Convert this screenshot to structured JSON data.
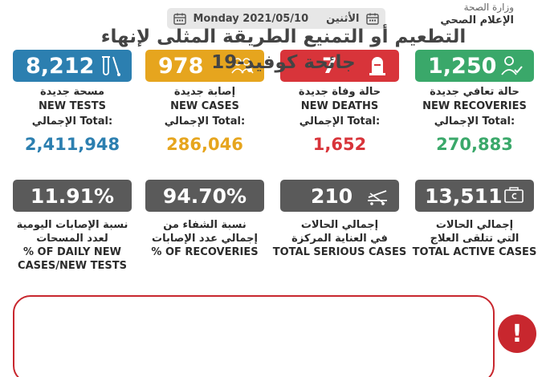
{
  "header": {
    "date_en": "Monday 2021/05/10",
    "day_ar": "الأثنين"
  },
  "ministry": {
    "line1": "وزارة الصحة",
    "line2": "الإعلام الصحي"
  },
  "colors": {
    "blue": "#2c7fb0",
    "yellow": "#e6a51e",
    "red": "#d8343a",
    "green": "#3aa86a",
    "gray": "#5a5a5a"
  },
  "cards": [
    {
      "value": "8,212",
      "label_ar": "مسحة جديدة",
      "label_en": "NEW TESTS",
      "total_label": "الإجمالي Total:",
      "total": "2,411,948",
      "icon": "test-tube-icon"
    },
    {
      "value": "978",
      "label_ar": "إصابة جديدة",
      "label_en": "NEW CASES",
      "total_label": "الإجمالي Total:",
      "total": "286,046",
      "icon": "virus-people-icon"
    },
    {
      "value": "7",
      "label_ar": "حالة وفاة جديدة",
      "label_en": "NEW DEATHS",
      "total_label": "الإجمالي Total:",
      "total": "1,652",
      "icon": "gravestone-icon"
    },
    {
      "value": "1,250",
      "label_ar": "حالة تعافي جديدة",
      "label_en": "NEW RECOVERIES",
      "total_label": "الإجمالي Total:",
      "total": "270,883",
      "icon": "person-check-icon"
    }
  ],
  "stats": [
    {
      "value": "11.91%",
      "line1": "نسبة الإصابات اليومية",
      "line2": "لعدد المسحات",
      "line3": "% OF DAILY NEW",
      "line4": "CASES/NEW TESTS"
    },
    {
      "value": "94.70%",
      "line1": "نسبة الشفاء من",
      "line2": "إجمالي عدد الإصابات",
      "line3": "% OF RECOVERIES",
      "line4": ""
    },
    {
      "value": "210",
      "line1": "إجمالي الحالات",
      "line2": "في العناية المركزة",
      "line3": "TOTAL SERIOUS CASES",
      "line4": "",
      "icon": "hospital-bed-icon"
    },
    {
      "value": "13,511",
      "line1": "إجمالي الحالات",
      "line2": "التي تتلقى العلاج",
      "line3": "TOTAL ACTIVE CASES",
      "line4": "",
      "icon": "medicine-box-icon"
    }
  ],
  "notice": {
    "line1": "التطعيم أو التمنيع الطريقة المثلى لإنهاء",
    "line2": "جائحة كوفيد-19",
    "icon": "exclamation-icon"
  }
}
